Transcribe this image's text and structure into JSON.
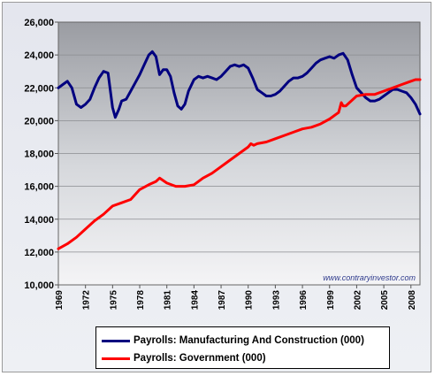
{
  "watermark": "www.contraryinvestor.com",
  "chart_data": {
    "type": "line",
    "title": "",
    "xlabel": "",
    "ylabel": "",
    "ylim": [
      10000,
      26000
    ],
    "xlim": [
      1969,
      2009
    ],
    "yticks": [
      "10,000",
      "12,000",
      "14,000",
      "16,000",
      "18,000",
      "20,000",
      "22,000",
      "24,000",
      "26,000"
    ],
    "xticks": [
      "1969",
      "1972",
      "1975",
      "1978",
      "1981",
      "1984",
      "1987",
      "1990",
      "1993",
      "1996",
      "1999",
      "2002",
      "2005",
      "2008"
    ],
    "grid": "horizontal",
    "legend_position": "bottom",
    "series": [
      {
        "name": "Payrolls: Manufacturing And Construction (000)",
        "color": "#00007f",
        "x": [
          1969.0,
          1969.5,
          1970.0,
          1970.5,
          1971.0,
          1971.5,
          1972.0,
          1972.5,
          1973.0,
          1973.5,
          1974.0,
          1974.5,
          1975.0,
          1975.3,
          1975.7,
          1976.0,
          1976.5,
          1977.0,
          1977.5,
          1978.0,
          1978.5,
          1979.0,
          1979.4,
          1979.8,
          1980.2,
          1980.6,
          1981.0,
          1981.4,
          1981.8,
          1982.2,
          1982.6,
          1983.0,
          1983.4,
          1984.0,
          1984.5,
          1985.0,
          1985.5,
          1986.0,
          1986.5,
          1987.0,
          1987.5,
          1988.0,
          1988.5,
          1989.0,
          1989.5,
          1990.0,
          1990.5,
          1991.0,
          1991.5,
          1992.0,
          1992.5,
          1993.0,
          1993.5,
          1994.0,
          1994.5,
          1995.0,
          1995.5,
          1996.0,
          1996.5,
          1997.0,
          1997.5,
          1998.0,
          1998.5,
          1999.0,
          1999.5,
          2000.0,
          2000.5,
          2001.0,
          2001.5,
          2002.0,
          2002.5,
          2003.0,
          2003.5,
          2004.0,
          2004.5,
          2005.0,
          2005.5,
          2006.0,
          2006.5,
          2007.0,
          2007.5,
          2008.0,
          2008.5,
          2009.0
        ],
        "values": [
          22000,
          22200,
          22400,
          22000,
          21000,
          20800,
          21000,
          21300,
          22000,
          22600,
          23000,
          22900,
          20800,
          20200,
          20700,
          21200,
          21300,
          21800,
          22300,
          22800,
          23400,
          24000,
          24200,
          23900,
          22800,
          23100,
          23100,
          22700,
          21700,
          20900,
          20700,
          21000,
          21800,
          22500,
          22700,
          22600,
          22700,
          22600,
          22500,
          22700,
          23000,
          23300,
          23400,
          23300,
          23400,
          23200,
          22600,
          21900,
          21700,
          21500,
          21500,
          21600,
          21800,
          22100,
          22400,
          22600,
          22600,
          22700,
          22900,
          23200,
          23500,
          23700,
          23800,
          23900,
          23800,
          24000,
          24100,
          23700,
          22800,
          22000,
          21700,
          21400,
          21200,
          21200,
          21300,
          21500,
          21700,
          21900,
          21900,
          21800,
          21700,
          21400,
          21000,
          20400
        ]
      },
      {
        "name": "Payrolls: Government (000)",
        "color": "#ff0000",
        "x": [
          1969.0,
          1970.0,
          1971.0,
          1972.0,
          1973.0,
          1974.0,
          1975.0,
          1976.0,
          1977.0,
          1978.0,
          1979.0,
          1979.8,
          1980.2,
          1981.0,
          1982.0,
          1983.0,
          1984.0,
          1985.0,
          1986.0,
          1987.0,
          1988.0,
          1989.0,
          1990.0,
          1990.3,
          1990.6,
          1991.0,
          1992.0,
          1993.0,
          1994.0,
          1995.0,
          1996.0,
          1997.0,
          1998.0,
          1999.0,
          2000.0,
          2000.3,
          2000.5,
          2000.8,
          2001.0,
          2002.0,
          2003.0,
          2004.0,
          2005.0,
          2006.0,
          2007.0,
          2008.0,
          2008.5,
          2009.0
        ],
        "values": [
          12200,
          12500,
          12900,
          13400,
          13900,
          14300,
          14800,
          15000,
          15200,
          15800,
          16100,
          16300,
          16500,
          16200,
          16000,
          16000,
          16100,
          16500,
          16800,
          17200,
          17600,
          18000,
          18400,
          18600,
          18500,
          18600,
          18700,
          18900,
          19100,
          19300,
          19500,
          19600,
          19800,
          20100,
          20500,
          21100,
          20900,
          20900,
          21000,
          21500,
          21600,
          21600,
          21800,
          22000,
          22200,
          22400,
          22500,
          22500
        ]
      }
    ]
  }
}
